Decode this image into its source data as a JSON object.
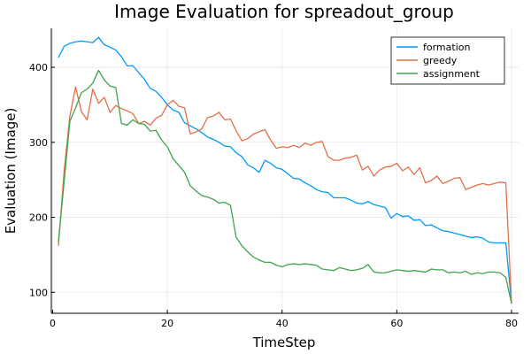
{
  "chart_data": {
    "type": "line",
    "title": "Image Evaluation for spreadout_group",
    "xlabel": "TimeStep",
    "ylabel": "Evaluation (Image)",
    "xlim": [
      1,
      80
    ],
    "ylim": [
      72,
      452
    ],
    "xticks": [
      0,
      20,
      40,
      60,
      80
    ],
    "yticks": [
      100,
      200,
      300,
      400
    ],
    "grid": true,
    "legend_position": "top-right",
    "series": [
      {
        "name": "formation",
        "color": "#009AFA",
        "values": [
          413,
          428,
          432,
          434,
          435,
          434,
          433,
          440,
          430,
          427,
          423,
          414,
          402,
          402,
          393,
          384,
          372,
          368,
          360,
          350,
          343,
          340,
          326,
          322,
          318,
          313,
          307,
          304,
          300,
          295,
          294,
          286,
          281,
          270,
          266,
          260,
          276,
          272,
          266,
          264,
          258,
          252,
          251,
          246,
          242,
          237,
          234,
          233,
          226,
          226,
          226,
          223,
          219,
          218,
          221,
          217,
          215,
          213,
          199,
          205,
          201,
          202,
          196,
          197,
          189,
          190,
          186,
          182,
          181,
          179,
          177,
          175,
          173,
          174,
          172,
          167,
          166,
          166,
          166,
          85
        ]
      },
      {
        "name": "greedy",
        "color": "#E36F47",
        "values": [
          162,
          262,
          335,
          374,
          341,
          330,
          371,
          352,
          360,
          340,
          349,
          345,
          342,
          338,
          325,
          328,
          323,
          332,
          336,
          350,
          356,
          348,
          346,
          311,
          314,
          318,
          333,
          335,
          340,
          330,
          331,
          315,
          302,
          305,
          311,
          314,
          317,
          303,
          292,
          294,
          293,
          296,
          293,
          299,
          296,
          300,
          301,
          281,
          276,
          276,
          279,
          280,
          283,
          263,
          268,
          255,
          263,
          267,
          268,
          272,
          262,
          267,
          257,
          266,
          246,
          249,
          255,
          245,
          248,
          252,
          253,
          237,
          240,
          243,
          245,
          243,
          245,
          247,
          246,
          85
        ]
      },
      {
        "name": "assignment",
        "color": "#3EA44E",
        "values": [
          167,
          248,
          328,
          346,
          366,
          371,
          379,
          396,
          383,
          375,
          373,
          325,
          323,
          330,
          325,
          324,
          315,
          316,
          303,
          294,
          278,
          269,
          260,
          242,
          235,
          229,
          227,
          224,
          219,
          220,
          216,
          173,
          162,
          154,
          147,
          143,
          140,
          140,
          136,
          134,
          137,
          138,
          137,
          138,
          137,
          136,
          131,
          130,
          129,
          133,
          131,
          129,
          130,
          132,
          137,
          127,
          126,
          126,
          128,
          130,
          129,
          128,
          129,
          128,
          127,
          131,
          130,
          130,
          126,
          127,
          126,
          128,
          124,
          126,
          125,
          127,
          127,
          126,
          120,
          85
        ]
      }
    ]
  }
}
